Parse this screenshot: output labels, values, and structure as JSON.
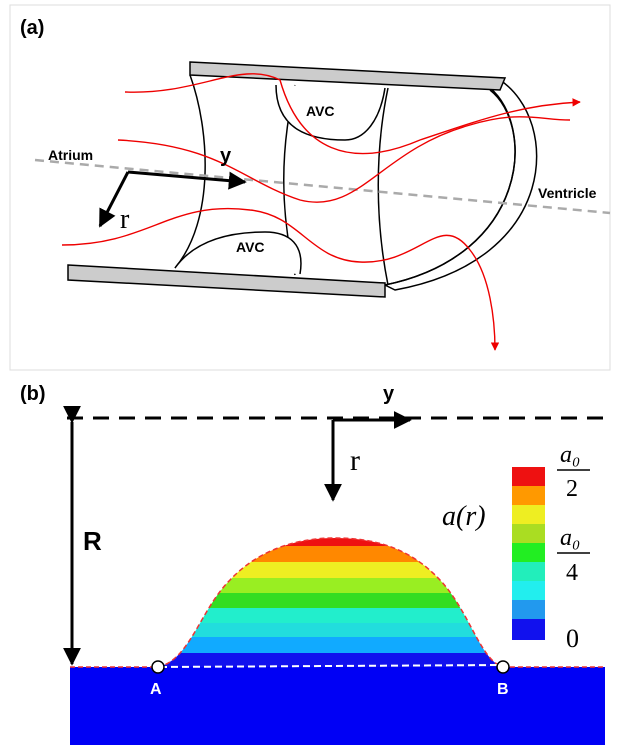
{
  "panel_a": {
    "label": "(a)",
    "avc_top": "AVC",
    "avc_bottom": "AVC",
    "axis_y": "y",
    "axis_r": "r",
    "atrium": "Atrium",
    "ventricle": "Ventricle"
  },
  "panel_b": {
    "label": "(b)",
    "axis_y": "y",
    "axis_r": "r",
    "radius": "R",
    "point_a": "A",
    "point_b": "B",
    "legend": {
      "title": "a(r)",
      "labels": [
        {
          "numerator": "a₀",
          "denominator": "2"
        },
        {
          "numerator": "a₀",
          "denominator": "4"
        },
        {
          "text": "0"
        }
      ]
    }
  }
}
